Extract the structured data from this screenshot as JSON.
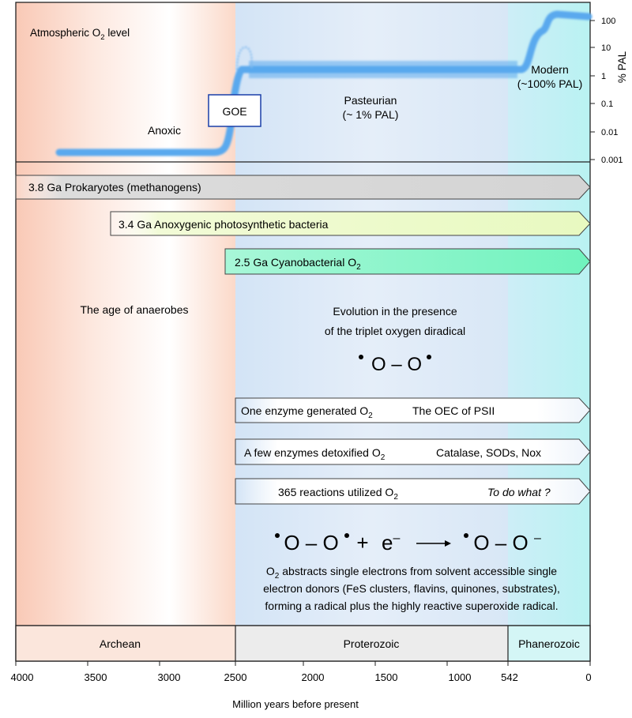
{
  "title_main": "Atmospheric O",
  "title_sub": "2",
  "title_rest": " level",
  "pal_axis_label": "% PAL",
  "pal_ticks": [
    "100",
    "10",
    "1",
    "0.1",
    "0.01",
    "0.001"
  ],
  "anoxic_label": "Anoxic",
  "goe_label": "GOE",
  "pasteurian_line1": "Pasteurian",
  "pasteurian_line2": "(~ 1% PAL)",
  "modern_line1": "Modern",
  "modern_line2": "(~100% PAL)",
  "arrow_prokaryotes": "3.8 Ga Prokaryotes (methanogens)",
  "arrow_anoxygenic": "3.4 Ga Anoxygenic photosynthetic bacteria",
  "arrow_cyano_main": "2.5 Ga Cyanobacterial O",
  "arrow_cyano_sub": "2",
  "age_anaerobes": "The age of anaerobes",
  "evolution_line1": "Evolution in the presence",
  "evolution_line2": "of the triplet oxygen diradical",
  "diradical_formula": "O – O",
  "enzyme_generated_main": "One enzyme generated O",
  "enzyme_generated_sub": "2",
  "enzyme_generated_example": "The OEC of PSII",
  "enzyme_detox_main": "A few enzymes detoxified O",
  "enzyme_detox_sub": "2",
  "enzyme_detox_example": "Catalase, SODs, Nox",
  "reactions_main": "365 reactions utilized O",
  "reactions_sub": "2",
  "reactions_question": "To do what ?",
  "equation_left": "O – O",
  "equation_plus": "+",
  "equation_e": "e",
  "equation_minus": "–",
  "equation_right": "O – O",
  "explanation_line1_pre": "O",
  "explanation_line1_sub": "2",
  "explanation_line1_post": " abstracts single electrons from solvent accessible single",
  "explanation_line2": "electron donors (FeS clusters, flavins, quinones, substrates),",
  "explanation_line3": "forming a radical plus the highly reactive superoxide radical.",
  "eons": [
    {
      "label": "Archean",
      "start": 4000,
      "end": 2500,
      "color": "#fbe6dc"
    },
    {
      "label": "Proterozoic",
      "start": 2500,
      "end": 542,
      "color": "#ececec"
    },
    {
      "label": "Phanerozoic",
      "start": 542,
      "end": 0,
      "color": "#d4f6f6"
    }
  ],
  "time_ticks": [
    "4000",
    "3500",
    "3000",
    "2500",
    "2000",
    "1500",
    "1000",
    "542",
    "0"
  ],
  "x_axis_label": "Million years before present",
  "colors": {
    "archean_bg": "#f9c9b6",
    "proterozoic_bg": "#d3e4f6",
    "phanerozoic_bg": "#b9f2f2",
    "o2_curve": "#5aa9ee",
    "goe_box": "#1a3fa8",
    "arrow_prokaryotes": "#d8d8d8",
    "arrow_anoxygenic": "#edfac8",
    "arrow_cyano": "#7af5c2"
  }
}
